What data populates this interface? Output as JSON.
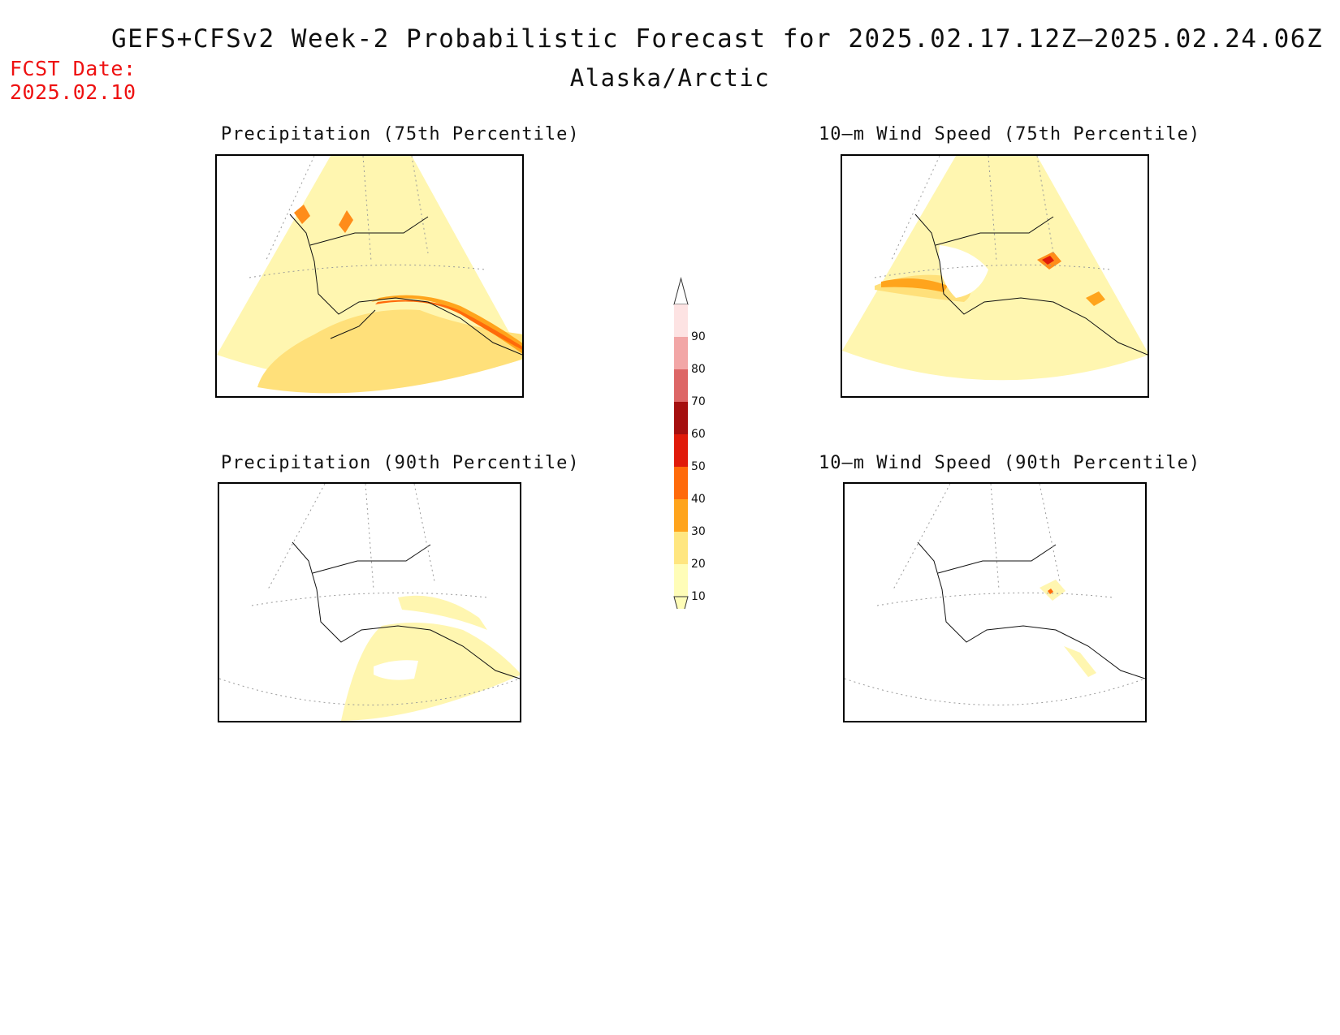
{
  "header": {
    "title": "GEFS+CFSv2 Week-2 Probabilistic Forecast for 2025.02.17.12Z–2025.02.24.06Z",
    "subtitle": "Alaska/Arctic",
    "fcst_label": "FCST Date:",
    "fcst_date": "2025.02.10"
  },
  "panels": [
    {
      "title": "Precipitation (75th Percentile)"
    },
    {
      "title": "10–m Wind Speed (75th Percentile)"
    },
    {
      "title": "Precipitation (90th Percentile)"
    },
    {
      "title": "10–m Wind Speed (90th Percentile)"
    }
  ],
  "legend": {
    "levels": [
      "10",
      "20",
      "30",
      "40",
      "50",
      "60",
      "70",
      "80",
      "90"
    ],
    "colors": [
      "#fffdb8",
      "#ffe680",
      "#ffa41c",
      "#ff6a0a",
      "#e01a0a",
      "#a50f0f",
      "#dd6666",
      "#f2a6a6",
      "#fde3e3"
    ]
  }
}
